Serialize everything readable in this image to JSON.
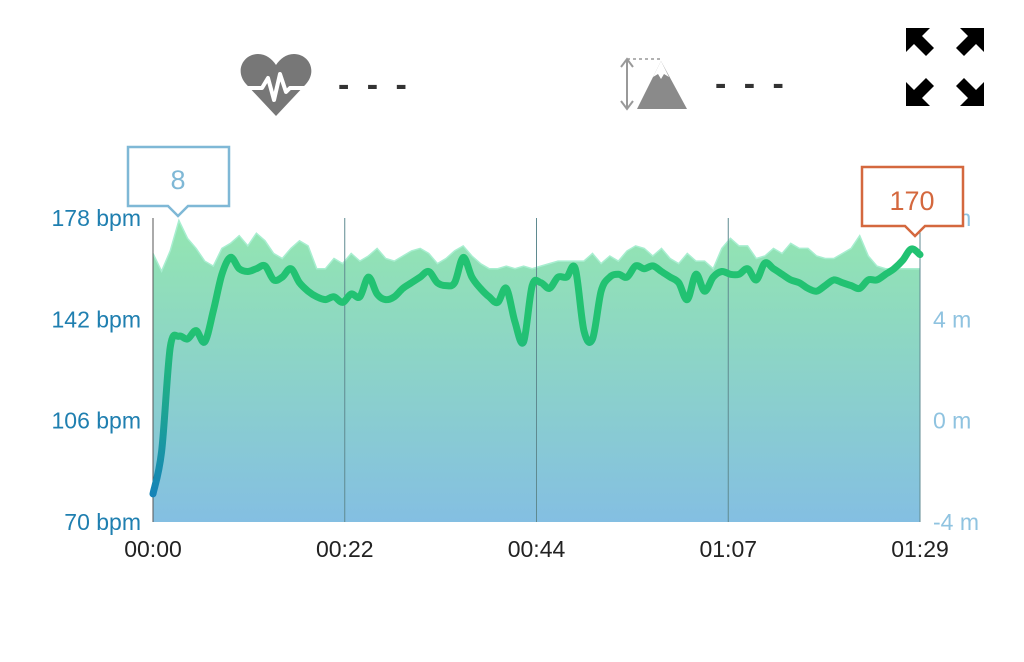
{
  "header": {
    "heart_rate": {
      "icon": "heart-rate-icon",
      "value": "- - -"
    },
    "elevation": {
      "icon": "elevation-mountain-icon",
      "value": "- - -"
    },
    "expand_icon": "expand-arrows-icon"
  },
  "chart_data": {
    "type": "line+area",
    "x_ticks": [
      "00:00",
      "00:22",
      "00:44",
      "01:07",
      "01:29"
    ],
    "x_range_seconds": [
      0,
      89
    ],
    "y_left": {
      "ticks": [
        "70 bpm",
        "106 bpm",
        "142 bpm",
        "178 bpm"
      ],
      "range": [
        70,
        178
      ]
    },
    "y_right": {
      "ticks": [
        "-4 m",
        "0 m",
        "4 m",
        "8 m"
      ],
      "range": [
        -4,
        8
      ]
    },
    "series": [
      {
        "type": "line",
        "axis": "left",
        "color": "#1fbf78",
        "x": [
          0,
          1,
          2,
          3,
          4,
          5,
          6,
          7,
          8,
          9,
          10,
          11,
          12,
          13,
          14,
          15,
          16,
          17,
          18,
          19,
          20,
          21,
          22,
          23,
          24,
          25,
          26,
          27,
          28,
          29,
          30,
          31,
          32,
          33,
          34,
          35,
          36,
          37,
          38,
          39,
          40,
          41,
          42,
          43,
          44,
          45,
          46,
          47,
          48,
          49,
          50,
          51,
          52,
          53,
          54,
          55,
          56,
          57,
          58,
          59,
          60,
          61,
          62,
          63,
          64,
          65,
          66,
          67,
          68,
          69,
          70,
          71,
          72,
          73,
          74,
          75,
          76,
          77,
          78,
          79,
          80,
          81,
          82,
          83,
          84,
          85,
          86,
          87,
          88,
          89
        ],
        "values": [
          80,
          95,
          132,
          136,
          135,
          138,
          134,
          145,
          158,
          164,
          160,
          159,
          160,
          161,
          156,
          157,
          160,
          155,
          152,
          150,
          149,
          150,
          148,
          151,
          150,
          157,
          151,
          149,
          150,
          153,
          155,
          157,
          159,
          155,
          154,
          155,
          164,
          157,
          153,
          150,
          148,
          153,
          141,
          134,
          154,
          155,
          153,
          157,
          157,
          160,
          138,
          135,
          152,
          157,
          158,
          157,
          161,
          160,
          161,
          159,
          157,
          155,
          149,
          158,
          152,
          157,
          159,
          158,
          158,
          160,
          156,
          162,
          160,
          158,
          156,
          155,
          153,
          152,
          154,
          156,
          155,
          154,
          153,
          156,
          156,
          158,
          160,
          163,
          167,
          165
        ]
      },
      {
        "type": "area",
        "axis": "right",
        "x": [
          0,
          1,
          2,
          3,
          4,
          5,
          6,
          7,
          8,
          9,
          10,
          11,
          12,
          13,
          14,
          15,
          16,
          17,
          18,
          19,
          20,
          21,
          22,
          23,
          24,
          25,
          26,
          27,
          28,
          29,
          30,
          31,
          32,
          33,
          34,
          35,
          36,
          37,
          38,
          39,
          40,
          41,
          42,
          43,
          44,
          45,
          46,
          47,
          48,
          49,
          50,
          51,
          52,
          53,
          54,
          55,
          56,
          57,
          58,
          59,
          60,
          61,
          62,
          63,
          64,
          65,
          66,
          67,
          68,
          69,
          70,
          71,
          72,
          73,
          74,
          75,
          76,
          77,
          78,
          79,
          80,
          81,
          82,
          83,
          84,
          85,
          86,
          87,
          88,
          89
        ],
        "values": [
          6.6,
          5.9,
          6.7,
          7.9,
          7.2,
          6.8,
          6.3,
          6.1,
          6.8,
          7.0,
          7.3,
          6.9,
          7.4,
          7.1,
          6.6,
          6.4,
          6.8,
          7.1,
          6.9,
          6.0,
          6.0,
          6.4,
          6.2,
          6.6,
          6.3,
          6.5,
          6.8,
          6.4,
          6.3,
          6.5,
          6.7,
          6.8,
          6.6,
          6.2,
          6.4,
          6.7,
          6.9,
          6.5,
          6.2,
          6.0,
          6.0,
          6.1,
          6.0,
          6.1,
          6.0,
          6.1,
          6.2,
          6.3,
          6.3,
          6.3,
          6.3,
          6.6,
          6.2,
          6.5,
          6.3,
          6.7,
          6.9,
          6.8,
          6.5,
          6.8,
          6.4,
          6.2,
          6.6,
          6.3,
          6.3,
          6.0,
          6.8,
          7.2,
          6.9,
          6.9,
          6.4,
          6.5,
          6.8,
          6.6,
          7.0,
          6.8,
          6.8,
          6.5,
          6.4,
          6.4,
          6.6,
          6.8,
          7.3,
          6.5,
          6.1,
          6.0,
          6.0,
          6.0,
          6.0,
          6.0
        ]
      }
    ],
    "callouts": {
      "start_label": "8",
      "end_label": "170"
    },
    "colors": {
      "area_top": "#93e6b0",
      "area_bottom": "#84bfe2",
      "line_start": "#1683b8",
      "line_end": "#22c272",
      "left_axis_text": "#1f7fb0",
      "right_axis_text": "#8fc3e0",
      "start_callout": "#7fb8d6",
      "end_callout": "#d4683e"
    },
    "grid": "vertical"
  }
}
